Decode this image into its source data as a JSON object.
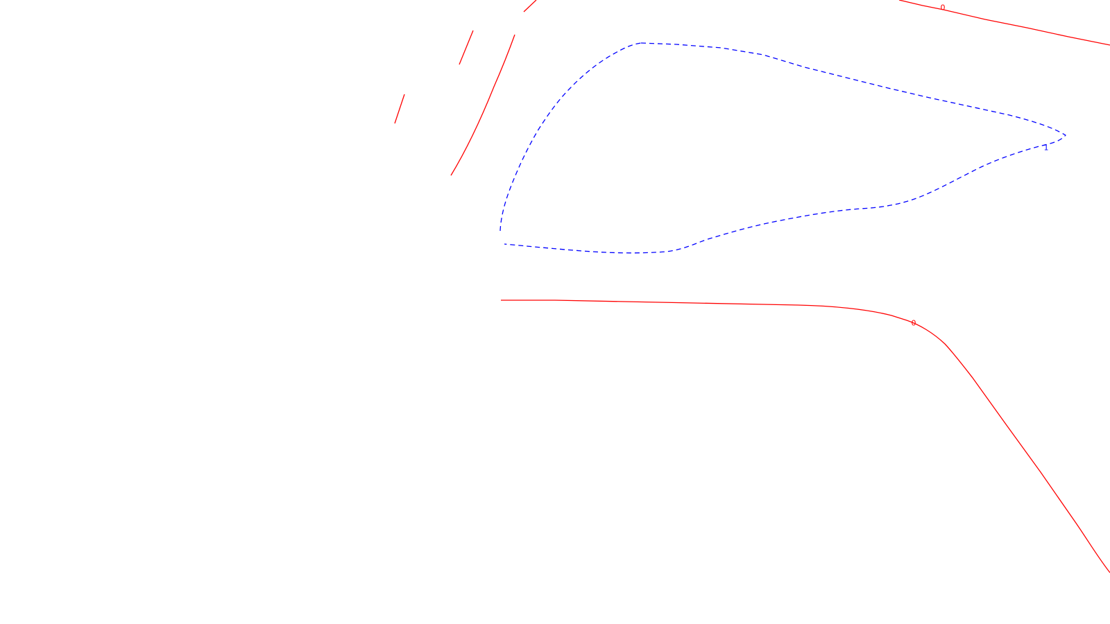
{
  "contours": [
    {
      "id": "zero-upper-right",
      "level_label": "0",
      "color": "#ff0000",
      "style": "solid"
    },
    {
      "id": "zero-lower",
      "level_label": "0",
      "color": "#ff0000",
      "style": "solid"
    },
    {
      "id": "zero-upper-left-a",
      "level_label": "",
      "color": "#ff0000",
      "style": "solid"
    },
    {
      "id": "zero-upper-left-b",
      "level_label": "",
      "color": "#ff0000",
      "style": "solid"
    },
    {
      "id": "zero-upper-left-c",
      "level_label": "",
      "color": "#ff0000",
      "style": "solid"
    },
    {
      "id": "zero-upper-left-d",
      "level_label": "",
      "color": "#ff0000",
      "style": "solid"
    },
    {
      "id": "one-closed-loop",
      "level_label": "1",
      "color": "#0000ff",
      "style": "dashed"
    }
  ]
}
